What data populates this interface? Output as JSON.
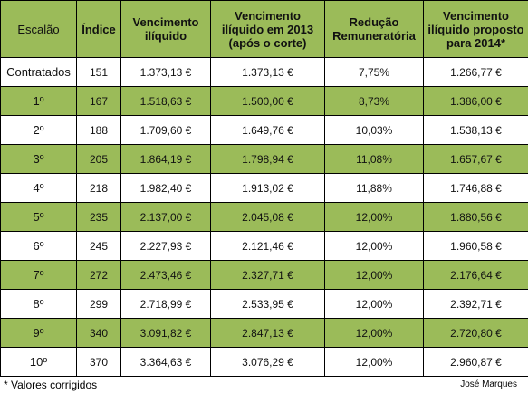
{
  "table": {
    "header": [
      "Escalão",
      "Índice",
      "Vencimento ilíquido",
      "Vencimento ilíquido em 2013 (após o corte)",
      "Redução Remuneratória",
      "Vencimento ilíquido proposto para 2014*"
    ],
    "rows": [
      [
        "Contratados",
        "151",
        "1.373,13 €",
        "1.373,13 €",
        "7,75%",
        "1.266,77 €"
      ],
      [
        "1º",
        "167",
        "1.518,63 €",
        "1.500,00 €",
        "8,73%",
        "1.386,00 €"
      ],
      [
        "2º",
        "188",
        "1.709,60 €",
        "1.649,76 €",
        "10,03%",
        "1.538,13 €"
      ],
      [
        "3º",
        "205",
        "1.864,19 €",
        "1.798,94 €",
        "11,08%",
        "1.657,67 €"
      ],
      [
        "4º",
        "218",
        "1.982,40 €",
        "1.913,02 €",
        "11,88%",
        "1.746,88 €"
      ],
      [
        "5º",
        "235",
        "2.137,00 €",
        "2.045,08 €",
        "12,00%",
        "1.880,56 €"
      ],
      [
        "6º",
        "245",
        "2.227,93 €",
        "2.121,46 €",
        "12,00%",
        "1.960,58 €"
      ],
      [
        "7º",
        "272",
        "2.473,46 €",
        "2.327,71 €",
        "12,00%",
        "2.176,64 €"
      ],
      [
        "8º",
        "299",
        "2.718,99 €",
        "2.533,95 €",
        "12,00%",
        "2.392,71 €"
      ],
      [
        "9º",
        "340",
        "3.091,82 €",
        "2.847,13 €",
        "12,00%",
        "2.720,80 €"
      ],
      [
        "10º",
        "370",
        "3.364,63 €",
        "3.076,29 €",
        "12,00%",
        "2.960,87 €"
      ]
    ]
  },
  "footer": {
    "note": "* Valores corrigidos",
    "author": "José Marques"
  }
}
